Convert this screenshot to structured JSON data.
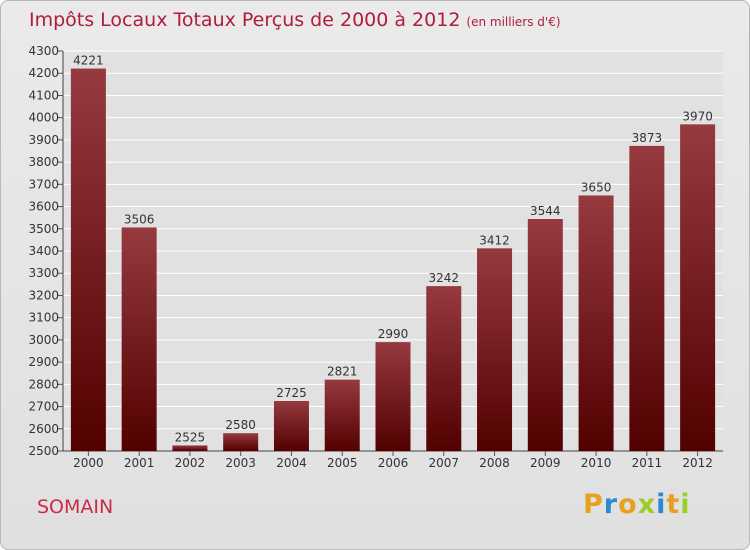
{
  "header": {
    "title": "Impôts Locaux Totaux Perçus de 2000 à 2012",
    "unit": "(en milliers d'€)"
  },
  "footer": {
    "town": "SOMAIN",
    "brand": "Proxiti",
    "brand_letters": [
      "P",
      "r",
      "o",
      "x",
      "i",
      "t",
      "i"
    ]
  },
  "colors": {
    "bar_top": "#963a40",
    "bar_bottom": "#520000",
    "title": "#b01c3c",
    "grid": "#ffffff",
    "brand_letters": [
      "#e8a020",
      "#2a8ad0",
      "#e8a020",
      "#9ccc2a",
      "#2a8ad0",
      "#e8a020",
      "#9ccc2a"
    ]
  },
  "chart_data": {
    "type": "bar",
    "title": "Impôts Locaux Totaux Perçus de 2000 à 2012",
    "xlabel": "",
    "ylabel": "",
    "ylim": [
      2500,
      4300
    ],
    "ytick_step": 100,
    "grid": true,
    "categories": [
      "2000",
      "2001",
      "2002",
      "2003",
      "2004",
      "2005",
      "2006",
      "2007",
      "2008",
      "2009",
      "2010",
      "2011",
      "2012"
    ],
    "values": [
      4221,
      3506,
      2525,
      2580,
      2725,
      2821,
      2990,
      3242,
      3412,
      3544,
      3650,
      3873,
      3970
    ]
  }
}
